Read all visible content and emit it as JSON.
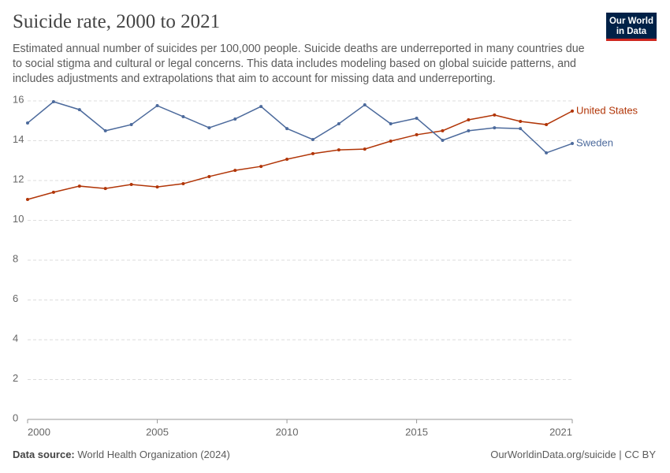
{
  "chart_data": {
    "type": "line",
    "title": "Suicide rate, 2000 to 2021",
    "subtitle": "Estimated annual number of suicides per 100,000 people. Suicide deaths are underreported in many countries due to social stigma and cultural or legal concerns. This data includes modeling based on global suicide patterns, and includes adjustments and extrapolations that aim to account for missing data and underreporting.",
    "logo": [
      "Our World",
      "in Data"
    ],
    "source_label": "Data source:",
    "source": "World Health Organization (2024)",
    "footer_right": "OurWorldinData.org/suicide | CC BY",
    "x": [
      2000,
      2001,
      2002,
      2003,
      2004,
      2005,
      2006,
      2007,
      2008,
      2009,
      2010,
      2011,
      2012,
      2013,
      2014,
      2015,
      2016,
      2017,
      2018,
      2019,
      2020,
      2021
    ],
    "series": [
      {
        "name": "United States",
        "color": "#b13507",
        "values": [
          11.05,
          11.41,
          11.72,
          11.6,
          11.8,
          11.68,
          11.84,
          12.2,
          12.51,
          12.71,
          13.07,
          13.35,
          13.54,
          13.58,
          13.98,
          14.3,
          14.5,
          15.05,
          15.29,
          14.97,
          14.81,
          15.49
        ]
      },
      {
        "name": "Sweden",
        "color": "#4c6a9c",
        "values": [
          14.89,
          15.96,
          15.56,
          14.5,
          14.81,
          15.76,
          15.21,
          14.65,
          15.09,
          15.72,
          14.61,
          14.06,
          14.85,
          15.8,
          14.85,
          15.13,
          14.02,
          14.5,
          14.65,
          14.61,
          13.39,
          13.86
        ]
      }
    ],
    "xlim": [
      2000,
      2021
    ],
    "xticks": [
      2000,
      2005,
      2010,
      2015,
      2021
    ],
    "ylim": [
      0,
      16
    ],
    "yticks": [
      0,
      2,
      4,
      6,
      8,
      10,
      12,
      14,
      16
    ],
    "grid": true
  }
}
